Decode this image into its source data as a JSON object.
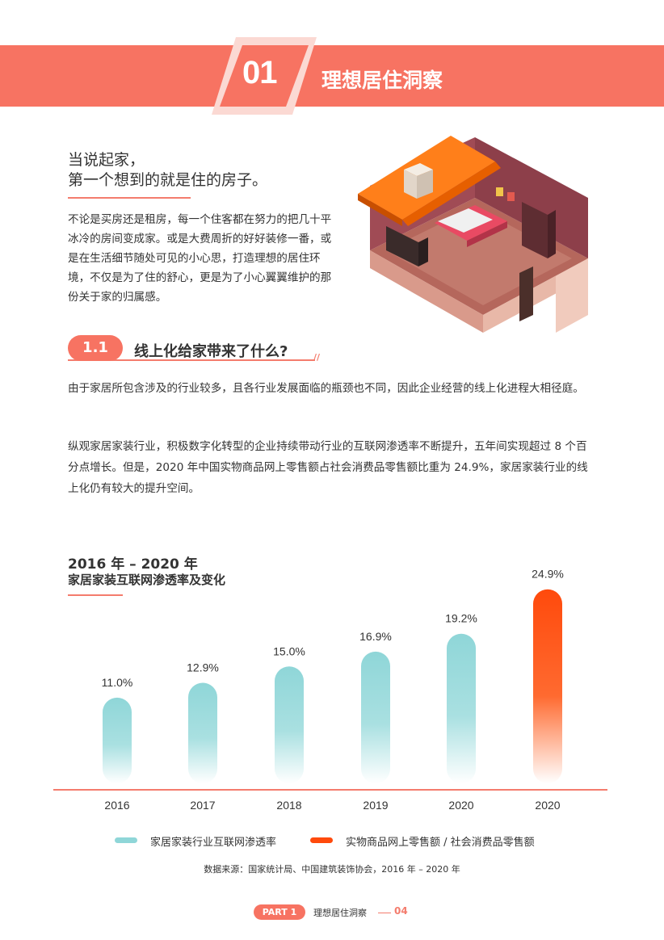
{
  "header": {
    "section_number": "01",
    "section_title": "理想居住洞察"
  },
  "intro": {
    "heading_line1": "当说起家，",
    "heading_line2": "第一个想到的就是住的房子。",
    "body": "不论是买房还是租房，每一个住客都在努力的把几十平冰冷的房间变成家。或是大费周折的好好装修一番，或是在生活细节随处可见的小心思，打造理想的居住环境，不仅是为了住的舒心，更是为了小心翼翼维护的那份关于家的归属感。"
  },
  "subsection": {
    "number": "1.1",
    "title": "线上化给家带来了什么?",
    "mark": "//"
  },
  "paragraphs": [
    "由于家居所包含涉及的行业较多，且各行业发展面临的瓶颈也不同，因此企业经营的线上化进程大相径庭。",
    "纵观家居家装行业，积极数字化转型的企业持续带动行业的互联网渗透率不断提升，五年间实现超过 8 个百分点增长。但是，2020 年中国实物商品网上零售额占社会消费品零售额比重为 24.9%，家居家装行业的线上化仍有较大的提升空间。"
  ],
  "chart_data": {
    "type": "bar",
    "title": "2016 年 – 2020 年",
    "subtitle": "家居家装互联网渗透率及变化",
    "categories": [
      "2016",
      "2017",
      "2018",
      "2019",
      "2020",
      "2020"
    ],
    "series": [
      {
        "name": "家居家装行业互联网渗透率",
        "values": [
          11.0,
          12.9,
          15.0,
          16.9,
          19.2,
          null
        ],
        "color": "#8fd6d8"
      },
      {
        "name": "实物商品网上零售额 / 社会消费品零售额",
        "values": [
          null,
          null,
          null,
          null,
          null,
          24.9
        ],
        "color": "#ff4a0c"
      }
    ],
    "value_labels": [
      "11.0%",
      "12.9%",
      "15.0%",
      "16.9%",
      "19.2%",
      "24.9%"
    ],
    "ylim": [
      0,
      25
    ],
    "grid": false,
    "legend": "bottom-center"
  },
  "source": "数据来源：国家统计局、中国建筑装饰协会，2016 年 – 2020 年",
  "footer": {
    "part_label": "PART 1",
    "section_label": "理想居住洞察",
    "page": "04"
  }
}
